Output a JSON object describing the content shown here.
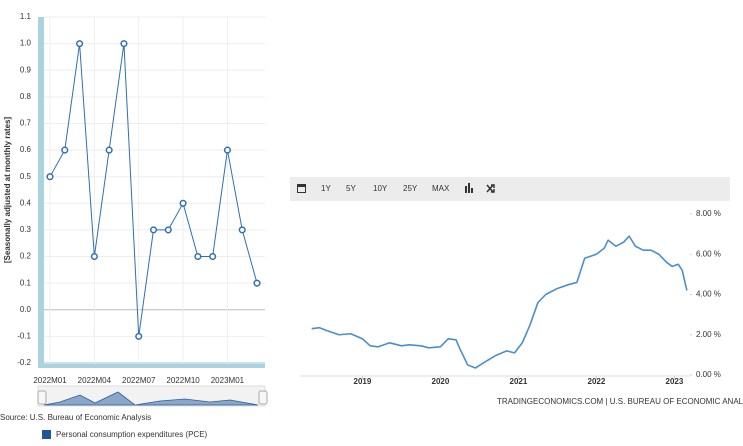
{
  "chart_data": [
    {
      "type": "line",
      "y_label": "[Seasonally adjusted at monthly rates]",
      "categories": [
        "2022M01",
        null,
        null,
        "2022M04",
        null,
        null,
        "2022M07",
        null,
        null,
        "2022M10",
        null,
        null,
        "2023M01",
        null,
        null
      ],
      "series": [
        {
          "name": "Personal consumption expenditures (PCE)",
          "color": "#2f6fb3",
          "values": [
            0.5,
            0.6,
            1.0,
            0.2,
            0.6,
            1.0,
            -0.1,
            0.3,
            0.3,
            0.4,
            0.2,
            0.2,
            0.6,
            0.3,
            0.1
          ]
        }
      ],
      "ylim": [
        -0.2,
        1.1
      ],
      "yticks": [
        -0.2,
        -0.1,
        {
          "value": 0,
          "label": "0.0"
        },
        0.1,
        0.2,
        0.3,
        0.4,
        0.5,
        0.6,
        0.7,
        0.8,
        0.9,
        {
          "value": 1,
          "label": "1.0"
        },
        1.1
      ],
      "grid": true,
      "source": "Source: U.S. Bureau of Economic Analysis"
    },
    {
      "type": "line",
      "buttons": [
        "1Y",
        "5Y",
        "10Y",
        "25Y",
        "MAX"
      ],
      "x": [
        2018.35,
        2018.45,
        2018.55,
        2018.7,
        2018.85,
        2019.0,
        2019.1,
        2019.2,
        2019.35,
        2019.5,
        2019.6,
        2019.75,
        2019.85,
        2020.0,
        2020.1,
        2020.2,
        2020.25,
        2020.35,
        2020.45,
        2020.55,
        2020.7,
        2020.85,
        2020.95,
        2021.05,
        2021.15,
        2021.25,
        2021.35,
        2021.5,
        2021.65,
        2021.75,
        2021.85,
        2022.0,
        2022.1,
        2022.15,
        2022.25,
        2022.35,
        2022.42,
        2022.5,
        2022.6,
        2022.7,
        2022.8,
        2022.9,
        2022.97,
        2023.05,
        2023.1,
        2023.16
      ],
      "values": [
        2.3,
        2.35,
        2.2,
        2.0,
        2.05,
        1.8,
        1.45,
        1.4,
        1.6,
        1.45,
        1.5,
        1.45,
        1.35,
        1.4,
        1.8,
        1.75,
        1.3,
        0.5,
        0.35,
        0.6,
        0.95,
        1.2,
        1.1,
        1.6,
        2.5,
        3.6,
        4.0,
        4.3,
        4.5,
        4.6,
        5.8,
        6.0,
        6.3,
        6.7,
        6.4,
        6.6,
        6.9,
        6.4,
        6.2,
        6.2,
        6.0,
        5.6,
        5.4,
        5.5,
        5.2,
        4.2
      ],
      "color": "#4b8fc8",
      "xlim": [
        2018.2,
        2023.2
      ],
      "xticks": [
        2019,
        2020,
        2021,
        2022,
        2023
      ],
      "ylim": [
        0,
        8
      ],
      "yticks": [
        {
          "value": 0,
          "label": "0.00 %"
        },
        {
          "value": 2,
          "label": "2.00 %"
        },
        {
          "value": 4,
          "label": "4.00 %"
        },
        {
          "value": 6,
          "label": "6.00 %"
        },
        {
          "value": 8,
          "label": "8.00 %"
        }
      ],
      "source": "TRADINGECONOMICS.COM | U.S. BUREAU OF ECONOMIC ANALYSIS"
    }
  ]
}
